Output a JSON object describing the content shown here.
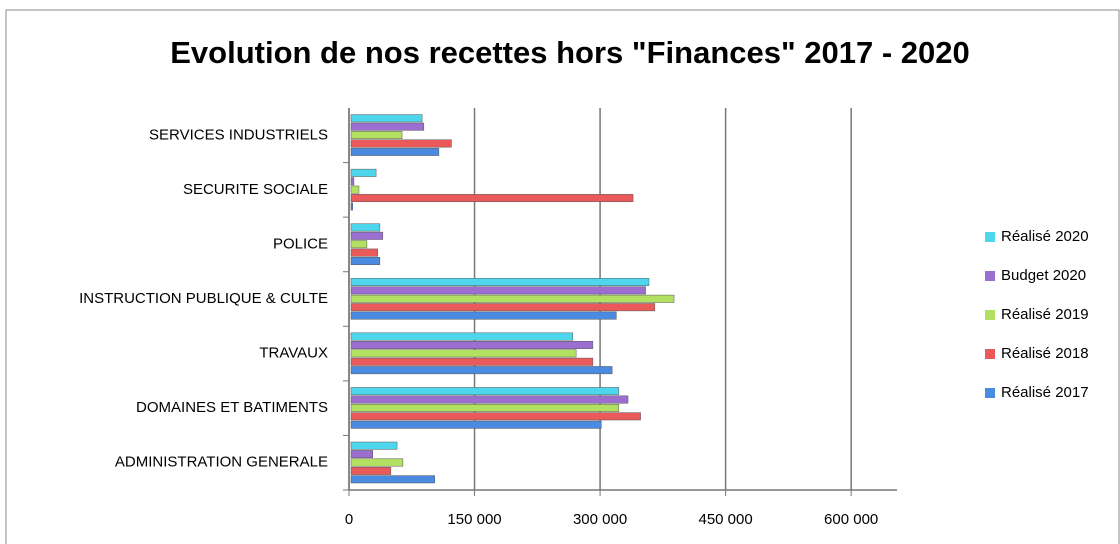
{
  "chart_data": {
    "type": "bar",
    "orientation": "horizontal",
    "title": "Evolution de nos recettes hors \"Finances\" 2017 - 2020",
    "categories": [
      "ADMINISTRATION GENERALE",
      "DOMAINES ET BATIMENTS",
      "TRAVAUX",
      "INSTRUCTION PUBLIQUE & CULTE",
      "POLICE",
      "SECURITE SOCIALE",
      "SERVICES INDUSTRIELS"
    ],
    "series": [
      {
        "name": "Réalisé 2017",
        "color": "#4a8ae0",
        "values": [
          100000,
          299000,
          312000,
          317000,
          34500,
          2000,
          105000
        ]
      },
      {
        "name": "Réalisé 2018",
        "color": "#ea5a5a",
        "values": [
          47600,
          346000,
          289000,
          363000,
          32000,
          337000,
          120000
        ]
      },
      {
        "name": "Réalisé 2019",
        "color": "#b2e060",
        "values": [
          62000,
          320000,
          269000,
          386000,
          19000,
          9500,
          61000
        ]
      },
      {
        "name": "Budget 2020",
        "color": "#9a6fd0",
        "values": [
          26000,
          331000,
          289000,
          352000,
          38000,
          3500,
          87000
        ]
      },
      {
        "name": "Réalisé 2020",
        "color": "#4dd6ec",
        "values": [
          55000,
          320000,
          265000,
          356000,
          34500,
          30000,
          85000
        ]
      }
    ],
    "xlim": [
      0,
      650000
    ],
    "xticks": [
      0,
      {
        "value": 150000,
        "label": "150 000"
      },
      {
        "value": 300000,
        "label": "300 000"
      },
      {
        "value": 450000,
        "label": "450 000"
      },
      {
        "value": 600000,
        "label": "600 000"
      }
    ],
    "grid": true,
    "legend": "right"
  }
}
